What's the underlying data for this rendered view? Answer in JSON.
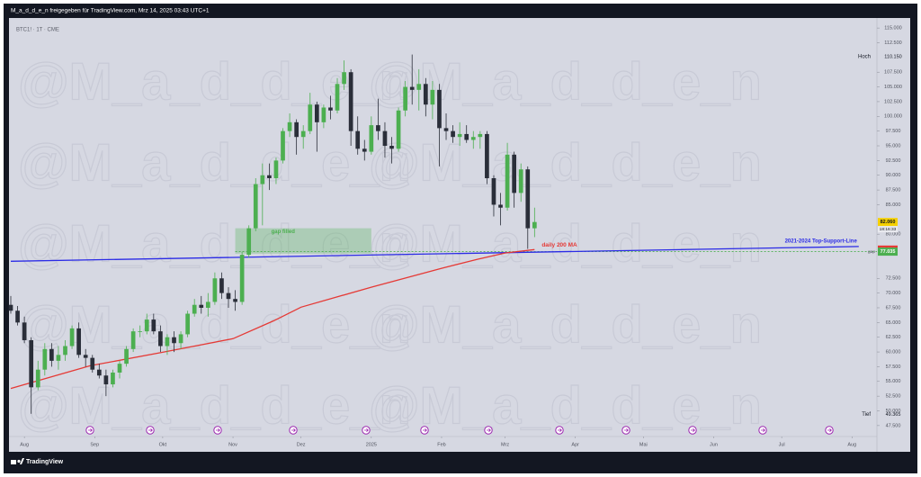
{
  "header": {
    "shared_by": "M_a_d_d_e_n freigegeben für TradingView.com, Mrz 14, 2025 03:43 UTC+1"
  },
  "footer": {
    "brand": "TradingView"
  },
  "chart_data": {
    "type": "candlestick",
    "symbol": "BTC1! · 1T · CME",
    "watermark": "@M_a_d_d_e_n",
    "up_color": "#4caf50",
    "down_color": "#2a2e39",
    "xlim": [
      -6,
      376
    ],
    "xticks": [
      {
        "value": 0,
        "label": "Aug"
      },
      {
        "value": 31,
        "label": "Sep"
      },
      {
        "value": 61,
        "label": "Okt"
      },
      {
        "value": 92,
        "label": "Nov"
      },
      {
        "value": 122,
        "label": "Dez"
      },
      {
        "value": 153,
        "label": "2025"
      },
      {
        "value": 184,
        "label": "Feb"
      },
      {
        "value": 212,
        "label": "Mrz"
      },
      {
        "value": 243,
        "label": "Apr"
      },
      {
        "value": 273,
        "label": "Mai"
      },
      {
        "value": 304,
        "label": "Jun"
      },
      {
        "value": 334,
        "label": "Jul"
      },
      {
        "value": 365,
        "label": "Aug"
      }
    ],
    "ylim": [
      45800,
      116700
    ],
    "yticks": [
      {
        "value": 115000,
        "label": "115.000"
      },
      {
        "value": 112500,
        "label": "112.500"
      },
      {
        "value": 107500,
        "label": "107.500"
      },
      {
        "value": 105000,
        "label": "105.000"
      },
      {
        "value": 102500,
        "label": "102.500"
      },
      {
        "value": 100000,
        "label": "100.000"
      },
      {
        "value": 97500,
        "label": "97.500"
      },
      {
        "value": 95000,
        "label": "95.000"
      },
      {
        "value": 92500,
        "label": "92.500"
      },
      {
        "value": 90000,
        "label": "90.000"
      },
      {
        "value": 87500,
        "label": "87.500"
      },
      {
        "value": 85000,
        "label": "85.000"
      },
      {
        "value": 80000,
        "label": "80.000"
      },
      {
        "value": 72500,
        "label": "72.500"
      },
      {
        "value": 70000,
        "label": "70.000"
      },
      {
        "value": 67500,
        "label": "67.500"
      },
      {
        "value": 65000,
        "label": "65.000"
      },
      {
        "value": 62500,
        "label": "62.500"
      },
      {
        "value": 60000,
        "label": "60.000"
      },
      {
        "value": 57500,
        "label": "57.500"
      },
      {
        "value": 55000,
        "label": "55.000"
      },
      {
        "value": 52500,
        "label": "52.500"
      },
      {
        "value": 50000,
        "label": "50.000"
      },
      {
        "value": 47500,
        "label": "47.500"
      }
    ],
    "x": [
      -6,
      -3,
      0,
      3,
      6,
      9,
      12,
      15,
      18,
      21,
      24,
      27,
      30,
      33,
      36,
      39,
      42,
      45,
      48,
      51,
      54,
      57,
      60,
      63,
      66,
      69,
      72,
      75,
      78,
      81,
      84,
      87,
      90,
      93,
      96,
      99,
      102,
      105,
      108,
      111,
      114,
      117,
      120,
      123,
      126,
      129,
      132,
      135,
      138,
      141,
      144,
      147,
      150,
      153,
      156,
      159,
      162,
      165,
      168,
      171,
      174,
      177,
      180,
      183,
      186,
      189,
      192,
      195,
      198,
      201,
      204,
      207,
      210,
      213,
      216,
      219,
      222,
      225
    ],
    "open": [
      68000,
      67000,
      65000,
      62000,
      54000,
      57000,
      60500,
      58500,
      59500,
      61000,
      64000,
      59500,
      59000,
      57000,
      56000,
      54500,
      56500,
      58000,
      60500,
      63500,
      63500,
      65500,
      63500,
      61000,
      62500,
      61500,
      63000,
      66500,
      68000,
      67500,
      68500,
      72500,
      70000,
      69000,
      68500,
      76500,
      81000,
      88500,
      90000,
      89500,
      92500,
      97500,
      99000,
      96500,
      97500,
      102000,
      99000,
      101500,
      101000,
      105500,
      107500,
      97500,
      94500,
      94000,
      98500,
      97500,
      95000,
      94500,
      101000,
      105000,
      104500,
      105500,
      102000,
      104500,
      98000,
      97500,
      96500,
      97000,
      96000,
      96500,
      97000,
      89500,
      85000,
      84500,
      93500,
      87000,
      91000,
      81000
    ],
    "high": [
      69500,
      67800,
      66000,
      62500,
      58500,
      61500,
      61500,
      61000,
      62000,
      64500,
      65000,
      60500,
      59500,
      58000,
      57000,
      57000,
      58500,
      61000,
      64000,
      64500,
      66500,
      66500,
      64500,
      63000,
      63500,
      63500,
      67000,
      69000,
      69500,
      70000,
      73500,
      73500,
      71000,
      70500,
      77000,
      81500,
      89500,
      92000,
      92000,
      93000,
      98000,
      100500,
      99500,
      98500,
      104000,
      102500,
      102000,
      103500,
      106500,
      109500,
      108000,
      100000,
      96000,
      100000,
      103000,
      99000,
      96500,
      101500,
      106000,
      110500,
      108000,
      106500,
      106000,
      105500,
      100500,
      98500,
      99000,
      98500,
      97500,
      97500,
      97500,
      90000,
      87000,
      95500,
      94000,
      92000,
      91500,
      84500
    ],
    "low": [
      66500,
      64500,
      61500,
      49500,
      53500,
      56000,
      57500,
      57000,
      58500,
      60500,
      59000,
      57500,
      56500,
      55500,
      52500,
      54000,
      55500,
      57500,
      60000,
      62500,
      63000,
      63000,
      60000,
      59500,
      60000,
      60500,
      62500,
      66000,
      66500,
      66000,
      68000,
      69000,
      67500,
      67000,
      68000,
      76000,
      80500,
      81500,
      87500,
      88500,
      92000,
      96500,
      93500,
      94500,
      97000,
      94000,
      98000,
      99500,
      100500,
      104500,
      95000,
      93500,
      92500,
      93500,
      96000,
      93000,
      92000,
      94000,
      100000,
      102000,
      101000,
      100000,
      99500,
      91500,
      96000,
      95500,
      95000,
      95500,
      94500,
      94500,
      88500,
      83000,
      81500,
      84000,
      84500,
      85500,
      77500,
      79500
    ],
    "close": [
      67000,
      65000,
      62000,
      54000,
      57000,
      60500,
      58500,
      59500,
      61000,
      64000,
      59500,
      59000,
      57000,
      56000,
      54500,
      56500,
      58000,
      60500,
      63500,
      63500,
      65500,
      63500,
      61000,
      62500,
      61500,
      63000,
      66500,
      68000,
      67500,
      68500,
      72500,
      70000,
      69000,
      68500,
      76500,
      81000,
      88500,
      90000,
      89500,
      92500,
      97500,
      99000,
      96500,
      97500,
      102000,
      99000,
      101500,
      101000,
      105500,
      107500,
      97500,
      94500,
      94000,
      98500,
      97500,
      95000,
      94500,
      101000,
      105000,
      104500,
      105500,
      102000,
      104500,
      98000,
      97500,
      96500,
      97000,
      96000,
      96500,
      97000,
      89500,
      85000,
      84500,
      93500,
      87000,
      91000,
      81000,
      82060
    ],
    "last": {
      "value": 82060,
      "label": "82.060",
      "countdown": "18:16:33",
      "color": "#f5d000"
    },
    "high_mark": {
      "name": "Hoch",
      "value": 110150,
      "label": "110.150"
    },
    "low_mark": {
      "name": "Tief",
      "value": 49365,
      "label": "49.365"
    },
    "ma": {
      "name": "daily 200 MA",
      "color": "#e53935",
      "x": [
        -6,
        29,
        61,
        92,
        110,
        122,
        153,
        184,
        200,
        212,
        225
      ],
      "values": [
        53800,
        57650,
        59950,
        62250,
        65300,
        67600,
        71000,
        74200,
        75750,
        76800,
        77382
      ],
      "tag": {
        "value": 77382,
        "label": "77.382"
      }
    },
    "support_line": {
      "name": "2021-2024 Top-Support-Line",
      "color": "#2b2be6",
      "x": [
        -6,
        368
      ],
      "values": [
        75400,
        77900
      ]
    },
    "gap": {
      "name": "gap filled",
      "color": "#4caf50",
      "x": [
        93,
        153
      ],
      "range": [
        76700,
        81000
      ],
      "level": {
        "name": "gap",
        "value": 77035,
        "label": "77.035"
      }
    }
  }
}
